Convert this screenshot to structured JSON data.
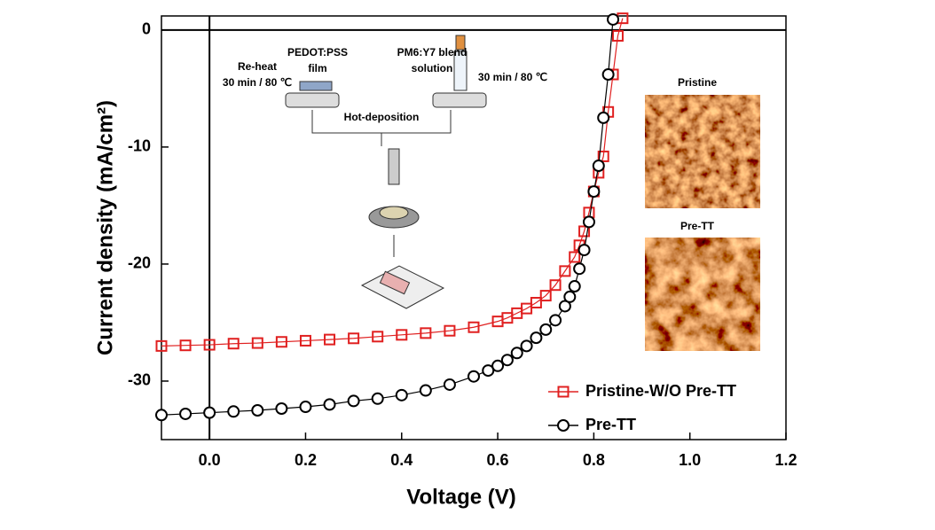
{
  "chart_data": {
    "type": "line",
    "xlabel": "Voltage (V)",
    "ylabel": "Current density  (mA/cm²)",
    "xlim": [
      -0.1,
      1.2
    ],
    "ylim": [
      -35,
      1.2
    ],
    "xticks": [
      {
        "value": 0,
        "label": "0.0"
      },
      0.2,
      0.4,
      0.6,
      0.8,
      {
        "value": 1,
        "label": "1.0"
      },
      1.2
    ],
    "yticks": [
      0,
      -10,
      -20,
      -30
    ],
    "legend": "lower right",
    "series": [
      {
        "name": "Pristine-W/O Pre-TT",
        "color": "#e02020",
        "marker": "square",
        "x": [
          -0.1,
          -0.05,
          0,
          0.05,
          0.1,
          0.15,
          0.2,
          0.25,
          0.3,
          0.35,
          0.4,
          0.45,
          0.5,
          0.55,
          0.6,
          0.62,
          0.64,
          0.66,
          0.68,
          0.7,
          0.72,
          0.74,
          0.76,
          0.77,
          0.78,
          0.79,
          0.8,
          0.81,
          0.82,
          0.83,
          0.84,
          0.85,
          0.86
        ],
        "values": [
          -27.0,
          -26.95,
          -26.9,
          -26.8,
          -26.75,
          -26.65,
          -26.55,
          -26.45,
          -26.35,
          -26.2,
          -26.05,
          -25.9,
          -25.7,
          -25.4,
          -24.9,
          -24.6,
          -24.2,
          -23.8,
          -23.3,
          -22.7,
          -21.8,
          -20.6,
          -19.4,
          -18.4,
          -17.2,
          -15.6,
          -13.8,
          -12.2,
          -10.8,
          -7.0,
          -3.8,
          -0.5,
          1.0
        ]
      },
      {
        "name": "Pre-TT",
        "color": "#000000",
        "marker": "circle",
        "x": [
          -0.1,
          -0.05,
          0,
          0.05,
          0.1,
          0.15,
          0.2,
          0.25,
          0.3,
          0.35,
          0.4,
          0.45,
          0.5,
          0.55,
          0.58,
          0.6,
          0.62,
          0.64,
          0.66,
          0.68,
          0.7,
          0.72,
          0.74,
          0.75,
          0.76,
          0.77,
          0.78,
          0.79,
          0.8,
          0.81,
          0.82,
          0.83,
          0.84
        ],
        "values": [
          -32.9,
          -32.8,
          -32.7,
          -32.6,
          -32.5,
          -32.35,
          -32.2,
          -32.0,
          -31.7,
          -31.5,
          -31.2,
          -30.8,
          -30.3,
          -29.6,
          -29.1,
          -28.7,
          -28.2,
          -27.6,
          -27.0,
          -26.3,
          -25.6,
          -24.8,
          -23.6,
          -22.8,
          -21.9,
          -20.4,
          -18.8,
          -16.4,
          -13.8,
          -11.6,
          -7.5,
          -3.8,
          0.9
        ]
      }
    ],
    "annotations": [
      "Re-heat",
      "30 min / 80 ℃",
      "PEDOT:PSS",
      "film",
      "PM6:Y7 blend",
      "solution",
      "30 min / 80 ℃",
      "Hot-deposition",
      "Pristine",
      "Pre-TT"
    ]
  }
}
